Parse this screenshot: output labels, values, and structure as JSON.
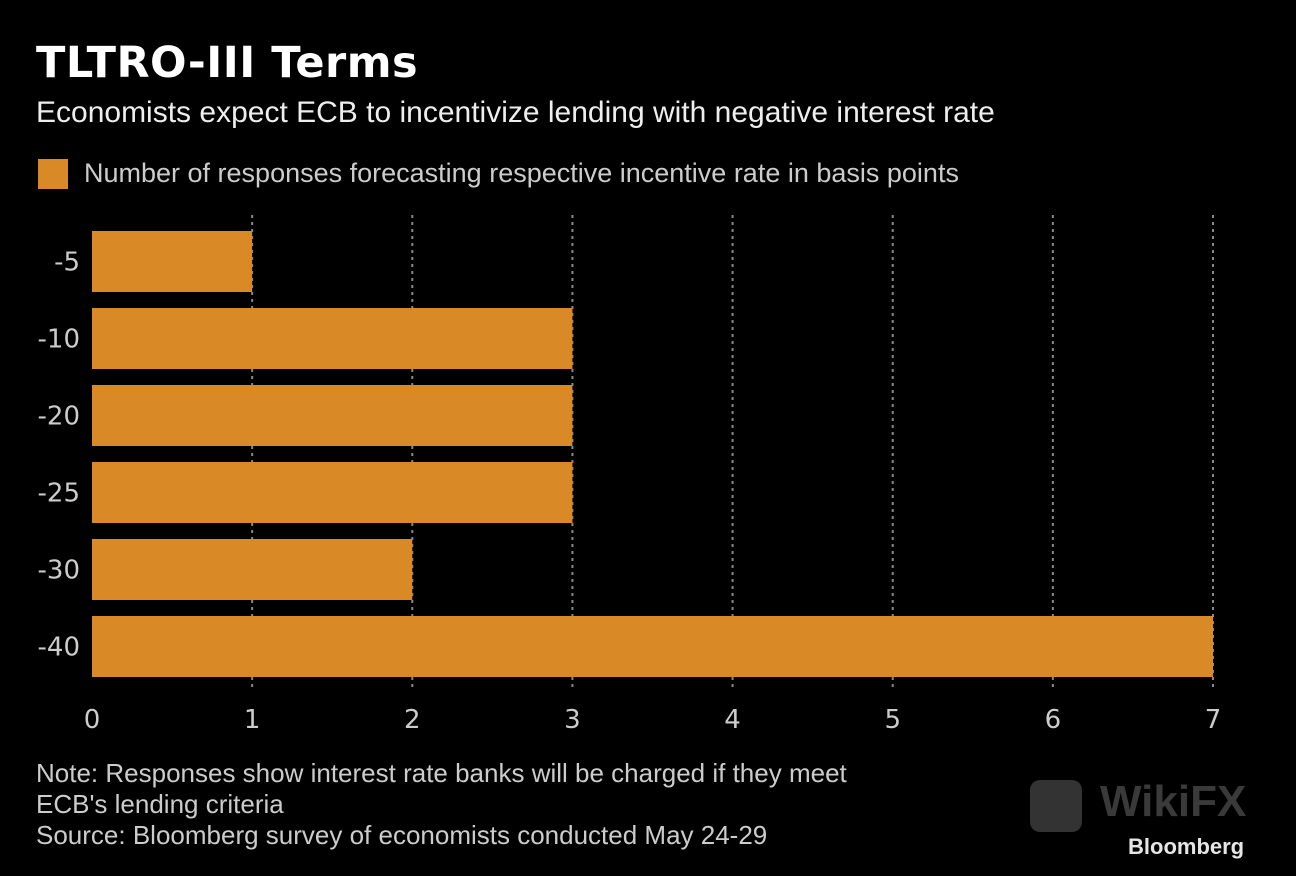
{
  "title": "TLTRO-III Terms",
  "subtitle": "Economists expect ECB to incentivize lending with negative interest rate",
  "legend_label": "Number of responses forecasting respective incentive rate in basis points",
  "note_line1": "Note: Responses show interest rate banks will be charged if they meet",
  "note_line2": "ECB's lending criteria",
  "source": "Source: Bloomberg survey of economists conducted May 24-29",
  "brand": "Bloomberg",
  "watermark": "WikiFX",
  "colors": {
    "bar": "#d98a26",
    "background": "#000000",
    "grid": "#888888"
  },
  "chart_data": {
    "type": "bar",
    "orientation": "horizontal",
    "title": "TLTRO-III Terms",
    "categories": [
      "-5",
      "-10",
      "-20",
      "-25",
      "-30",
      "-40"
    ],
    "values": [
      1,
      3,
      3,
      3,
      2,
      7
    ],
    "series_name": "Number of responses forecasting respective incentive rate in basis points",
    "xlim": [
      0,
      7
    ],
    "xticks": [
      "0",
      "1",
      "2",
      "3",
      "4",
      "5",
      "6",
      "7"
    ],
    "grid": "vertical dotted",
    "legend_position": "top-left"
  }
}
